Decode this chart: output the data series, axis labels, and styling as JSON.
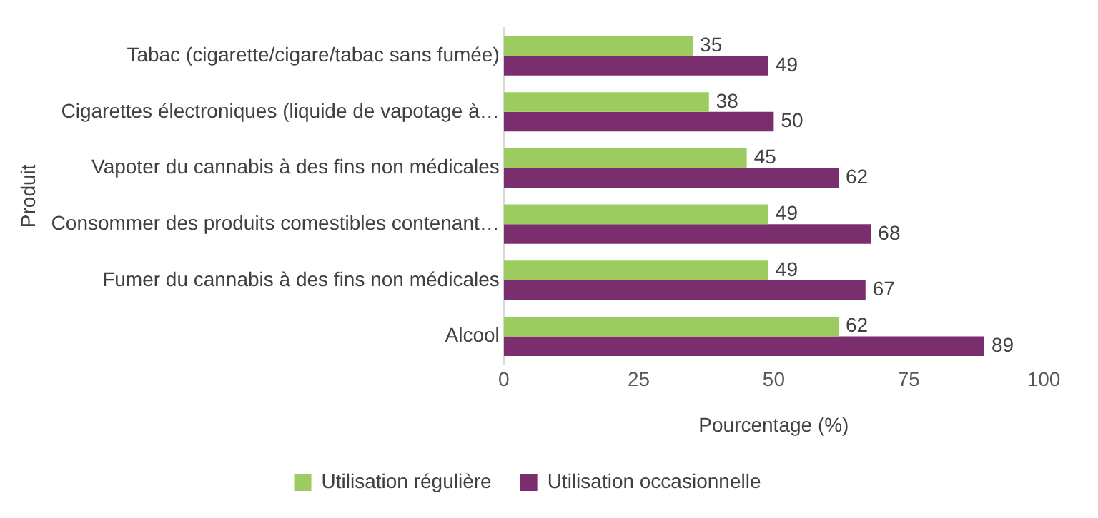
{
  "chart_data": {
    "type": "bar",
    "orientation": "horizontal",
    "xlabel": "Pourcentage (%)",
    "ylabel": "Produit",
    "categories": [
      "Tabac (cigarette/cigare/tabac sans fumée)",
      "Cigarettes électroniques (liquide de vapotage à…",
      "Vapoter du cannabis à des fins non médicales",
      "Consommer des produits comestibles contenant…",
      "Fumer du cannabis à des fins non médicales",
      "Alcool"
    ],
    "series": [
      {
        "name": "Utilisation régulière",
        "color": "#9ccc5f",
        "values": [
          35,
          38,
          45,
          49,
          49,
          62
        ]
      },
      {
        "name": "Utilisation occasionnelle",
        "color": "#7a2e6e",
        "values": [
          49,
          50,
          62,
          68,
          67,
          89
        ]
      }
    ],
    "xlim": [
      0,
      100
    ],
    "xticks": [
      0,
      25,
      50,
      75,
      100
    ],
    "grid": false,
    "legend": "bottom",
    "data_labels": true
  }
}
